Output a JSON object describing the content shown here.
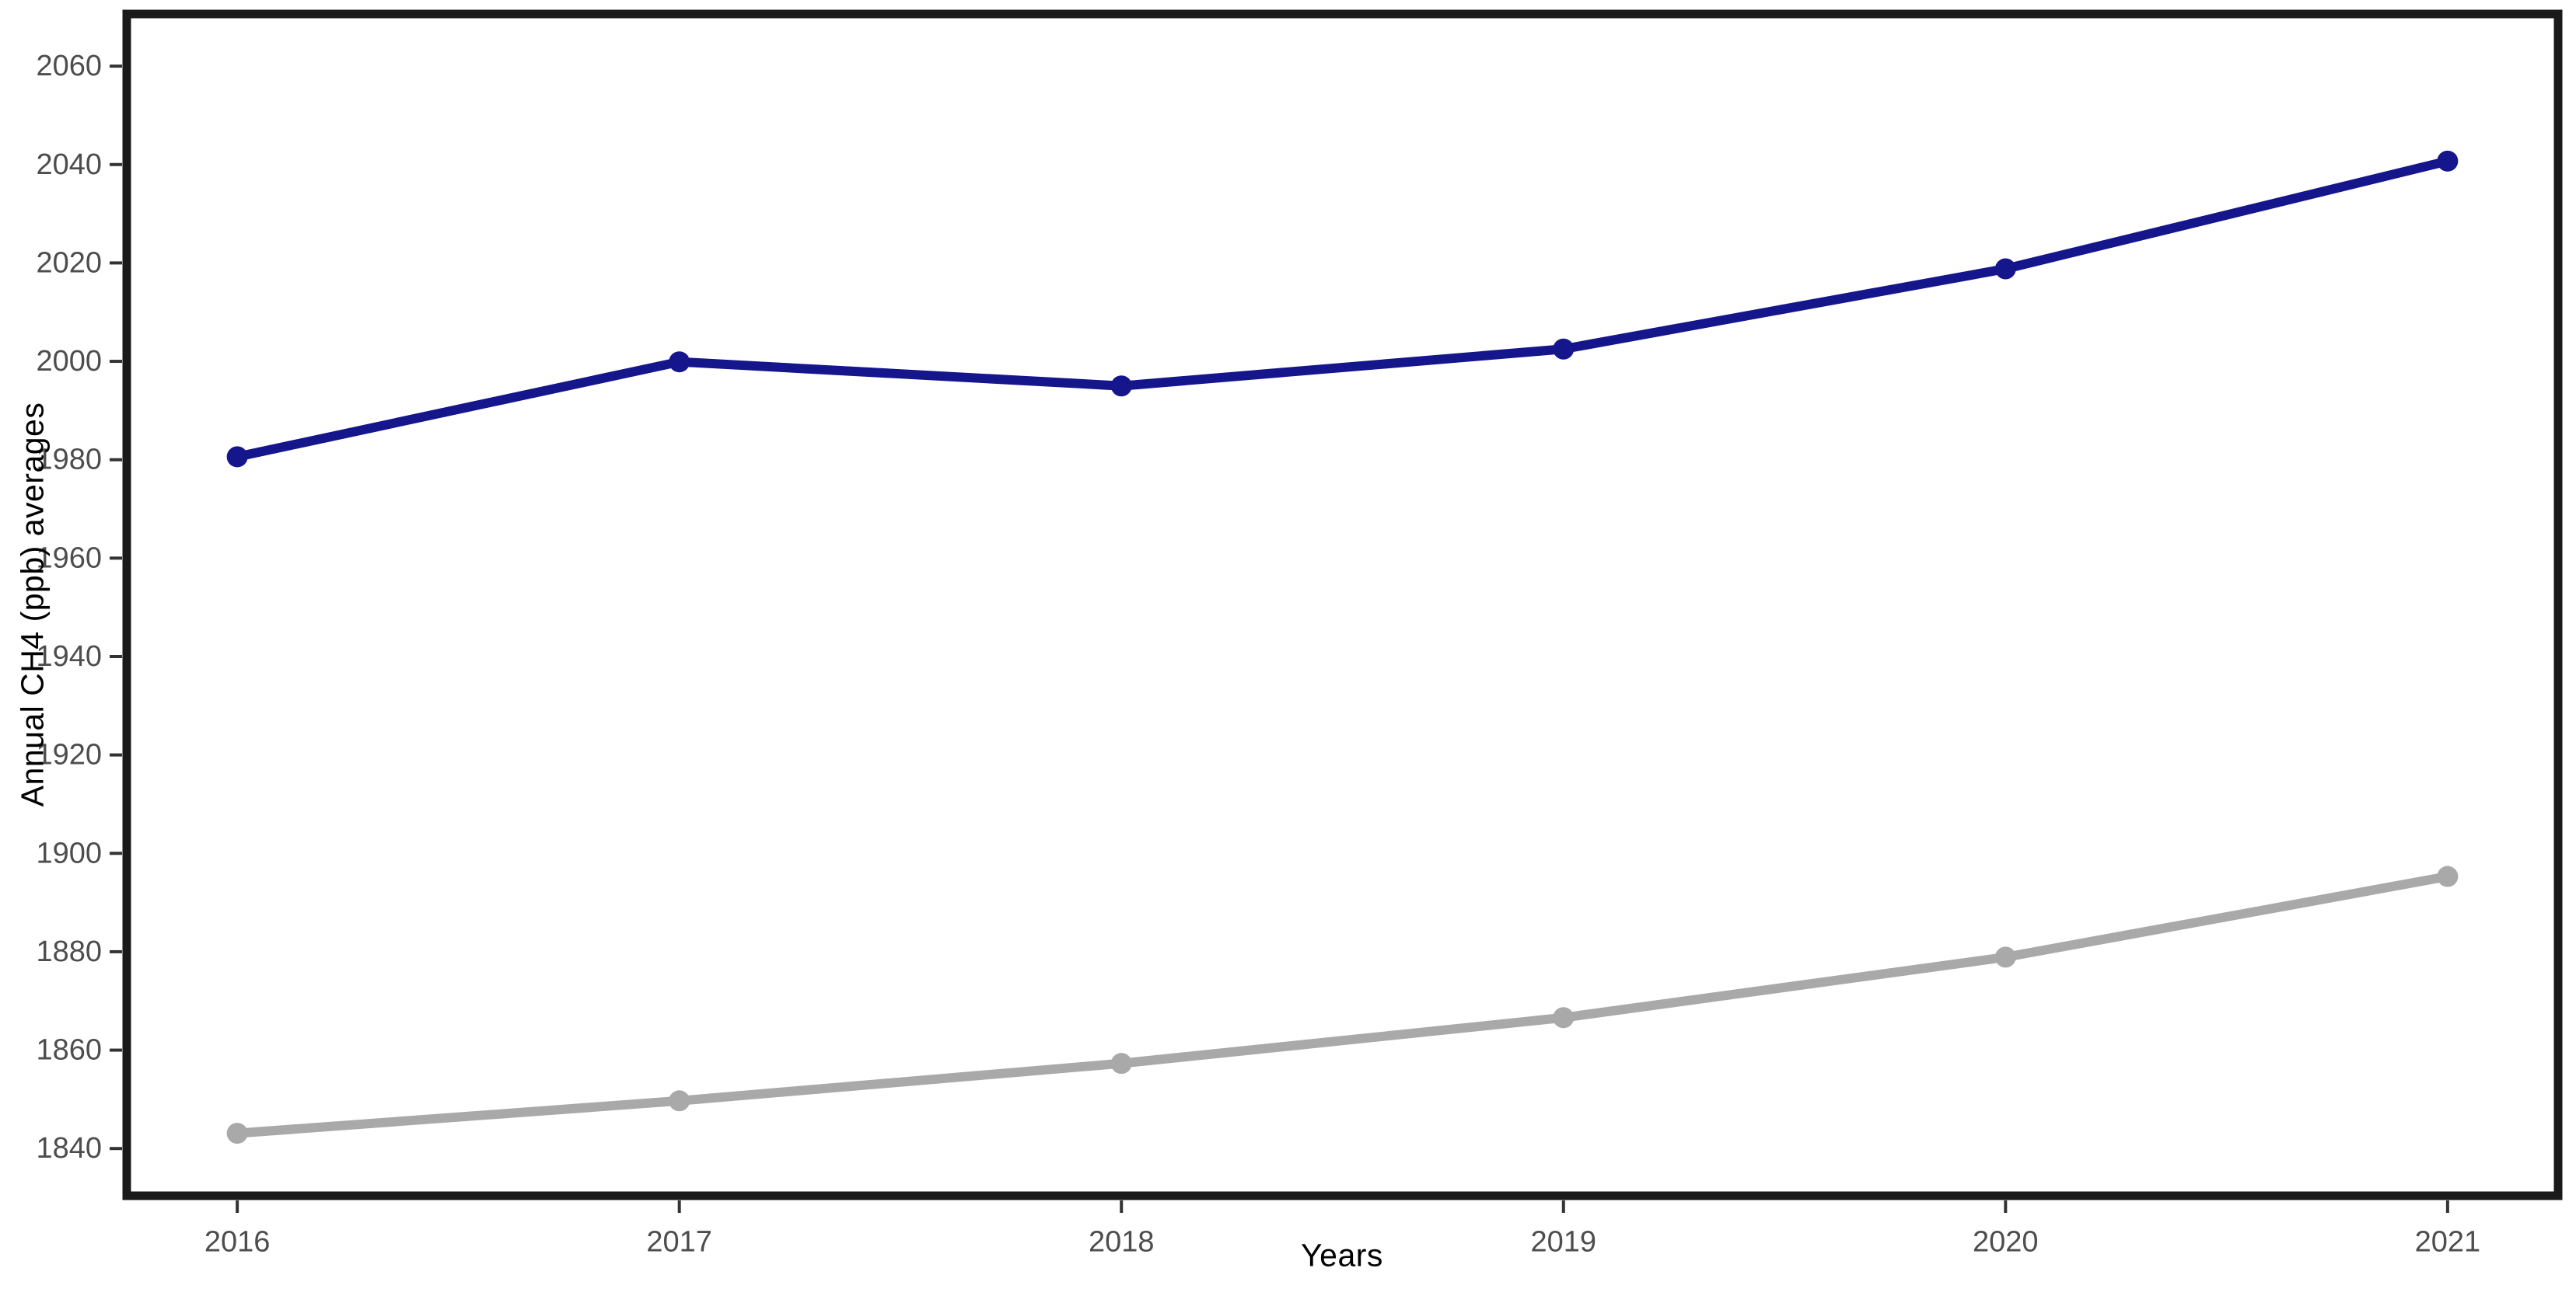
{
  "page": {
    "background": "#FFFFFF"
  },
  "chart_data": {
    "type": "line",
    "x": [
      2016,
      2017,
      2018,
      2019,
      2020,
      2021
    ],
    "x_tick_labels": [
      "2016",
      "2017",
      "2018",
      "2019",
      "2020",
      "2021"
    ],
    "y_ticks": [
      1840,
      1860,
      1880,
      1900,
      1920,
      1940,
      1960,
      1980,
      2000,
      2020,
      2040,
      2060
    ],
    "series": [
      {
        "name": "upper-navy-series",
        "color": "#15158C",
        "values": [
          1980.6,
          1999.9,
          1995.0,
          2002.5,
          2018.8,
          2040.7
        ]
      },
      {
        "name": "lower-gray-series",
        "color": "#A9A9A9",
        "values": [
          1843.1,
          1849.7,
          1857.3,
          1866.6,
          1878.9,
          1895.3
        ]
      }
    ],
    "title": "",
    "xlabel": "Years",
    "ylabel": "Annual CH4 (ppb) averages",
    "xlim": [
      2015.75,
      2021.25
    ],
    "ylim": [
      1830.4,
      2070.6
    ],
    "grid": false,
    "legend": "none",
    "marker": "circle"
  },
  "style": {
    "border_color": "#1A1A1A",
    "tick_color": "#333333",
    "tick_label_color": "#4D4D4D",
    "axis_title_color": "#000000"
  }
}
